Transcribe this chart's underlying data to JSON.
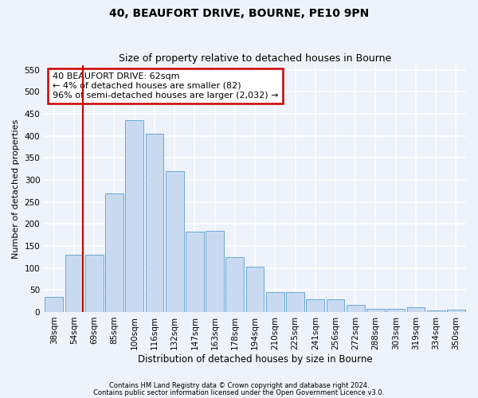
{
  "title1": "40, BEAUFORT DRIVE, BOURNE, PE10 9PN",
  "title2": "Size of property relative to detached houses in Bourne",
  "xlabel": "Distribution of detached houses by size in Bourne",
  "ylabel": "Number of detached properties",
  "categories": [
    "38sqm",
    "54sqm",
    "69sqm",
    "85sqm",
    "100sqm",
    "116sqm",
    "132sqm",
    "147sqm",
    "163sqm",
    "178sqm",
    "194sqm",
    "210sqm",
    "225sqm",
    "241sqm",
    "256sqm",
    "272sqm",
    "288sqm",
    "303sqm",
    "319sqm",
    "334sqm",
    "350sqm"
  ],
  "values": [
    35,
    130,
    130,
    270,
    435,
    405,
    320,
    183,
    185,
    125,
    103,
    45,
    45,
    28,
    28,
    17,
    8,
    8,
    10,
    4,
    6
  ],
  "bar_color": "#c9daf0",
  "bar_edge_color": "#6aaad4",
  "marker_label1": "40 BEAUFORT DRIVE: 62sqm",
  "marker_label2": "← 4% of detached houses are smaller (82)",
  "marker_label3": "96% of semi-detached houses are larger (2,032) →",
  "vline_color": "#cc0000",
  "annotation_box_edgecolor": "#cc0000",
  "footer1": "Contains HM Land Registry data © Crown copyright and database right 2024.",
  "footer2": "Contains public sector information licensed under the Open Government Licence v3.0.",
  "ylim": [
    0,
    560
  ],
  "yticks": [
    0,
    50,
    100,
    150,
    200,
    250,
    300,
    350,
    400,
    450,
    500,
    550
  ],
  "bg_color": "#eef2fa",
  "grid_color": "#ffffff",
  "title1_fontsize": 10,
  "title2_fontsize": 9,
  "xlabel_fontsize": 8.5,
  "ylabel_fontsize": 8,
  "footer_fontsize": 6,
  "annot_fontsize": 8,
  "tick_fontsize": 7.5
}
